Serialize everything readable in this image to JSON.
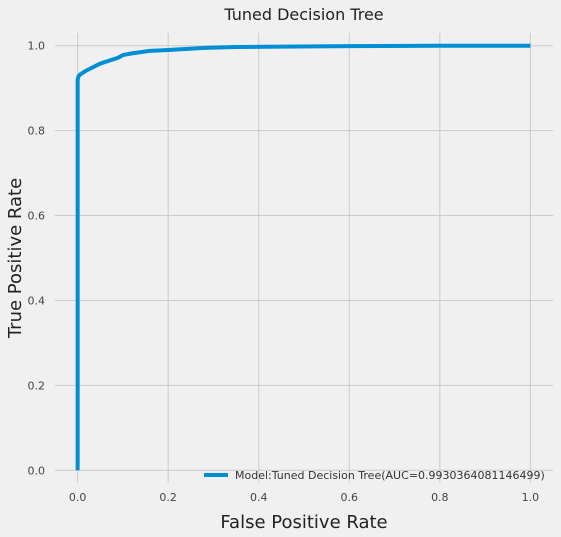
{
  "chart_data": {
    "type": "line",
    "title": "Tuned Decision Tree",
    "xlabel": "False Positive Rate",
    "ylabel": "True Positive Rate",
    "xlim": [
      -0.05,
      1.05
    ],
    "ylim": [
      -0.03,
      1.03
    ],
    "xticks": [
      0.0,
      0.2,
      0.4,
      0.6,
      0.8,
      1.0
    ],
    "yticks": [
      0.0,
      0.2,
      0.4,
      0.6,
      0.8,
      1.0
    ],
    "xtick_labels": [
      "0.0",
      "0.2",
      "0.4",
      "0.6",
      "0.8",
      "1.0"
    ],
    "ytick_labels": [
      "0.0",
      "0.2",
      "0.4",
      "0.6",
      "0.8",
      "1.0"
    ],
    "grid": true,
    "legend_position": "lower-right",
    "series": [
      {
        "name": "Model:Tuned Decision Tree(AUC=0.9930364081146499)",
        "color": "#008fd5",
        "x": [
          0.0,
          0.0,
          0.002,
          0.005,
          0.02,
          0.05,
          0.09,
          0.1,
          0.12,
          0.16,
          0.2,
          0.28,
          0.35,
          0.45,
          0.6,
          0.8,
          1.0
        ],
        "y": [
          0.0,
          0.92,
          0.928,
          0.932,
          0.942,
          0.958,
          0.972,
          0.978,
          0.982,
          0.988,
          0.99,
          0.995,
          0.997,
          0.998,
          0.999,
          1.0,
          1.0
        ]
      }
    ]
  }
}
